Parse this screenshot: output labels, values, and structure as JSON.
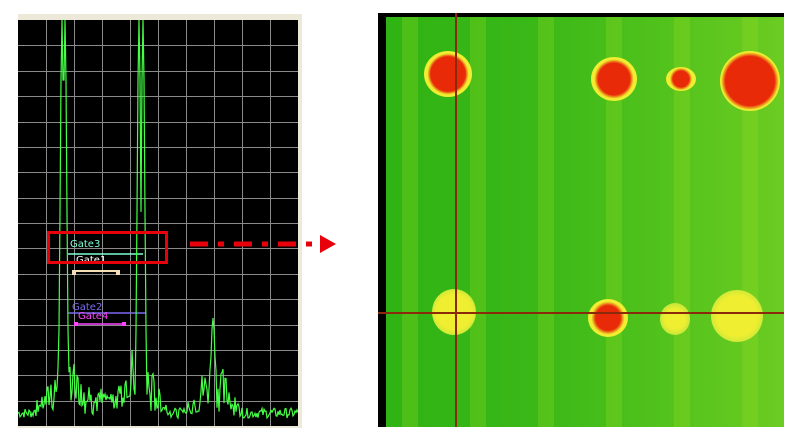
{
  "ascan": {
    "gates": {
      "gate3_label": "Gate3",
      "gate1_label": "Gate1",
      "gate2_label": "Gate2",
      "gate4_label": "Gate4"
    },
    "colors": {
      "trace": "#44ff44",
      "grid": "#8a8a8a",
      "gate3": "#7fffd4",
      "gate1": "#ffffff",
      "gate1_bar": "#f5deb3",
      "gate2": "#7b68ee",
      "gate4": "#ff44ff",
      "highlight": "#e8000a"
    }
  },
  "cscan": {
    "colors": {
      "background": "#3ab818",
      "defect_core": "#e82a08",
      "defect_halo": "#f0ee30",
      "cursor": "#8b2a0a"
    }
  }
}
